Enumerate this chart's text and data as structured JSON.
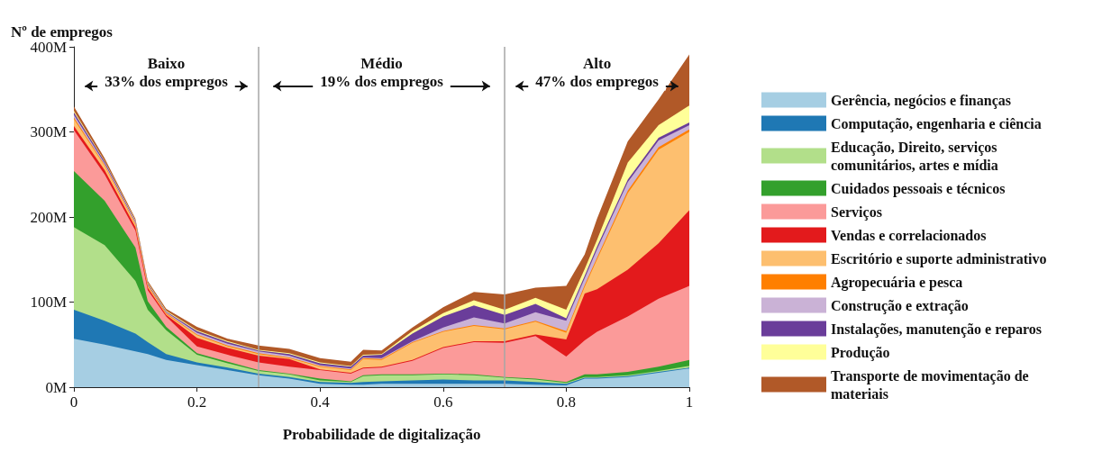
{
  "chart_data": {
    "type": "area",
    "stacked": true,
    "xlabel": "Probabilidade de digitalização",
    "ylabel": "Nº de empregos",
    "x": [
      0,
      0.05,
      0.1,
      0.12,
      0.15,
      0.2,
      0.25,
      0.3,
      0.35,
      0.4,
      0.45,
      0.47,
      0.5,
      0.55,
      0.6,
      0.65,
      0.7,
      0.75,
      0.8,
      0.83,
      0.85,
      0.9,
      0.95,
      1
    ],
    "xlim": [
      0,
      1
    ],
    "xticks": [
      0,
      0.2,
      0.4,
      0.6,
      0.8,
      1
    ],
    "ylim": [
      0,
      400
    ],
    "yticks": [
      {
        "value": 0,
        "label": "0M"
      },
      {
        "value": 100,
        "label": "100M"
      },
      {
        "value": 200,
        "label": "200M"
      },
      {
        "value": 300,
        "label": "300M"
      },
      {
        "value": 400,
        "label": "400M"
      }
    ],
    "legend": "right",
    "grid": false,
    "series": [
      {
        "name": "Gerência, negócios e finanças",
        "color": "#a6cee3",
        "values": [
          57,
          50,
          42,
          39,
          32,
          26,
          20,
          14,
          10,
          4,
          3,
          3,
          4,
          4,
          4,
          4,
          4,
          3,
          2,
          10,
          10,
          12,
          17,
          22
        ]
      },
      {
        "name": "Computação, engenharia e ciência",
        "color": "#1f78b4",
        "values": [
          34,
          28,
          21,
          14,
          7,
          3,
          3,
          2,
          2,
          2,
          2,
          3,
          3,
          4,
          5,
          4,
          4,
          3,
          2,
          1,
          1,
          1,
          1,
          1
        ]
      },
      {
        "name": "Educação, Direito, serviços comunitários, artes e mídia",
        "color": "#b2df8a",
        "values": [
          97,
          89,
          62,
          38,
          28,
          9,
          5,
          3,
          3,
          2,
          1,
          7,
          7,
          6,
          6,
          6,
          3,
          3,
          1,
          1,
          1,
          1,
          1,
          2
        ]
      },
      {
        "name": "Cuidados pessoais e técnicos",
        "color": "#33a02c",
        "values": [
          66,
          52,
          39,
          10,
          4,
          2,
          2,
          1,
          1,
          2,
          1,
          1,
          1,
          1,
          1,
          1,
          1,
          1,
          1,
          3,
          3,
          4,
          5,
          7
        ]
      },
      {
        "name": "Serviços",
        "color": "#fb9a99",
        "values": [
          48,
          31,
          20,
          13,
          12,
          8,
          8,
          9,
          8,
          10,
          9,
          8,
          8,
          16,
          30,
          38,
          40,
          50,
          30,
          40,
          50,
          65,
          80,
          87
        ]
      },
      {
        "name": "Vendas e correlacionados",
        "color": "#e31a1c",
        "values": [
          5,
          5,
          4,
          3,
          2,
          10,
          8,
          8,
          9,
          1,
          1,
          1,
          1,
          1,
          1,
          1,
          2,
          2,
          20,
          55,
          50,
          55,
          65,
          89
        ]
      },
      {
        "name": "Escritório e suporte administrativo",
        "color": "#fdbf6f",
        "values": [
          8,
          5,
          3,
          2,
          1,
          3,
          2,
          2,
          1,
          3,
          3,
          10,
          8,
          20,
          18,
          18,
          14,
          15,
          8,
          8,
          35,
          90,
          110,
          92
        ]
      },
      {
        "name": "Agropecuária e pesca",
        "color": "#ff7f00",
        "values": [
          2,
          1,
          1,
          1,
          1,
          1,
          1,
          1,
          1,
          1,
          1,
          1,
          1,
          1,
          1,
          1,
          1,
          1,
          2,
          2,
          2,
          3,
          3,
          3
        ]
      },
      {
        "name": "Construção e extração",
        "color": "#cab2d6",
        "values": [
          3,
          2,
          2,
          1,
          1,
          2,
          2,
          2,
          2,
          1,
          1,
          1,
          1,
          1,
          4,
          9,
          6,
          10,
          12,
          8,
          10,
          10,
          8,
          5
        ]
      },
      {
        "name": "Instalações, manutenção e reparos",
        "color": "#6a3d9a",
        "values": [
          3,
          2,
          1,
          1,
          1,
          2,
          2,
          1,
          2,
          2,
          2,
          2,
          4,
          9,
          13,
          14,
          10,
          10,
          3,
          3,
          3,
          3,
          3,
          3
        ]
      },
      {
        "name": "Produção",
        "color": "#ffff99",
        "values": [
          2,
          1,
          1,
          1,
          1,
          1,
          1,
          1,
          1,
          1,
          1,
          1,
          1,
          3,
          4,
          6,
          6,
          7,
          10,
          8,
          8,
          20,
          15,
          20
        ]
      },
      {
        "name": "Transporte de movimentação de materiais",
        "color": "#b15928",
        "values": [
          5,
          3,
          2,
          2,
          2,
          4,
          3,
          5,
          5,
          5,
          5,
          6,
          4,
          4,
          7,
          10,
          18,
          12,
          28,
          17,
          25,
          25,
          30,
          60
        ]
      }
    ],
    "ref_lines": [
      {
        "axis": "x",
        "value": 0.3,
        "color": "#a6a6a6"
      },
      {
        "axis": "x",
        "value": 0.7,
        "color": "#a6a6a6"
      }
    ],
    "annotations": [
      "Baixo\n33% dos empregos",
      "Médio\n19% dos empregos",
      "Alto\n47% dos empregos"
    ]
  }
}
